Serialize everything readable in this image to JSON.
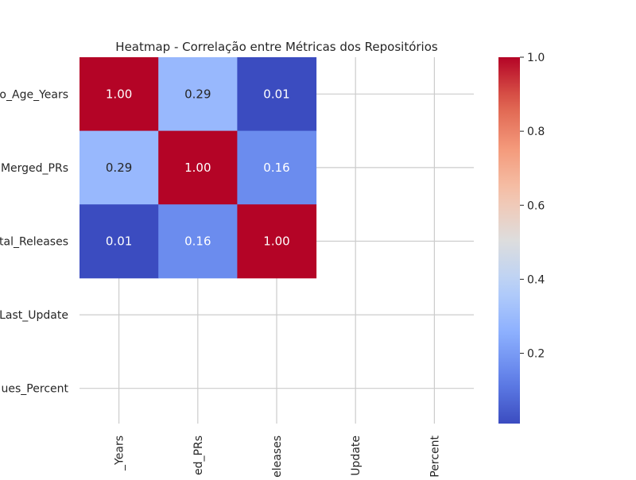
{
  "chart_data": {
    "type": "heatmap",
    "title": "Heatmap - Correlação entre Métricas dos Repositórios",
    "row_labels": [
      "Repo_Age_Years",
      "Merged_PRs",
      "Total_Releases",
      "Days_Since_Last_Update",
      "Closed_Issues_Percent"
    ],
    "row_labels_visible": [
      "o_Age_Years",
      "Merged_PRs",
      "tal_Releases",
      "Last_Update",
      "ues_Percent"
    ],
    "col_labels_visible": [
      "_Years",
      "ed_PRs",
      "eleases",
      "Update",
      "Percent"
    ],
    "matrix": [
      [
        1.0,
        0.29,
        0.01,
        null,
        null
      ],
      [
        0.29,
        1.0,
        0.16,
        null,
        null
      ],
      [
        0.01,
        0.16,
        1.0,
        null,
        null
      ],
      [
        null,
        null,
        null,
        null,
        null
      ],
      [
        null,
        null,
        null,
        null,
        null
      ]
    ],
    "annotations": [
      [
        "1.00",
        "0.29",
        "0.01",
        "",
        ""
      ],
      [
        "0.29",
        "1.00",
        "0.16",
        "",
        ""
      ],
      [
        "0.01",
        "0.16",
        "1.00",
        "",
        ""
      ],
      [
        "",
        "",
        "",
        "",
        ""
      ],
      [
        "",
        "",
        "",
        "",
        ""
      ]
    ],
    "colormap": "coolwarm",
    "colorbar": {
      "min": 0.01,
      "max": 1.0,
      "ticks": [
        0.2,
        0.4,
        0.6,
        0.8,
        1.0
      ],
      "tick_labels": [
        "0.2",
        "0.4",
        "0.6",
        "0.8",
        "1.0"
      ]
    },
    "grid": true,
    "legend": "right"
  }
}
